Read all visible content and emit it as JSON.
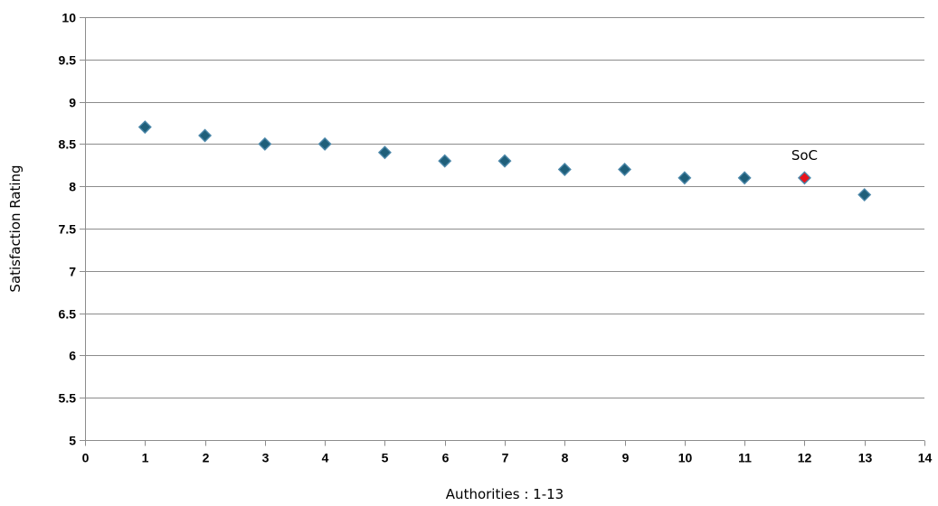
{
  "chart_data": {
    "type": "scatter",
    "title": "",
    "xlabel": "Authorities : 1-13",
    "ylabel": "Satisfaction Rating",
    "xlim": [
      0,
      14
    ],
    "ylim": [
      5,
      10
    ],
    "x_ticks": [
      0,
      1,
      2,
      3,
      4,
      5,
      6,
      7,
      8,
      9,
      10,
      11,
      12,
      13,
      14
    ],
    "x_tick_labels": [
      "0",
      "1",
      "2",
      "3",
      "4",
      "5",
      "6",
      "7",
      "8",
      "9",
      "10",
      "11",
      "12",
      "13",
      "14"
    ],
    "y_ticks": [
      5,
      5.5,
      6,
      6.5,
      7,
      7.5,
      8,
      8.5,
      9,
      9.5,
      10
    ],
    "y_tick_labels": [
      "5",
      "5.5",
      "6",
      "6.5",
      "7",
      "7.5",
      "8",
      "8.5",
      "9",
      "9.5",
      "10"
    ],
    "grid": "horizontal",
    "legend": "none",
    "marker": "diamond",
    "series": [
      {
        "color": "#1f5f7a",
        "highlight_color": "#e8141c",
        "points": [
          {
            "x": 1,
            "y": 8.7
          },
          {
            "x": 2,
            "y": 8.6
          },
          {
            "x": 3,
            "y": 8.5
          },
          {
            "x": 4,
            "y": 8.5
          },
          {
            "x": 5,
            "y": 8.4
          },
          {
            "x": 6,
            "y": 8.3
          },
          {
            "x": 7,
            "y": 8.3
          },
          {
            "x": 8,
            "y": 8.2
          },
          {
            "x": 9,
            "y": 8.2
          },
          {
            "x": 10,
            "y": 8.1
          },
          {
            "x": 11,
            "y": 8.1
          },
          {
            "x": 12,
            "y": 8.1,
            "highlight": true,
            "label": "SoC"
          },
          {
            "x": 13,
            "y": 7.9
          }
        ]
      }
    ]
  }
}
